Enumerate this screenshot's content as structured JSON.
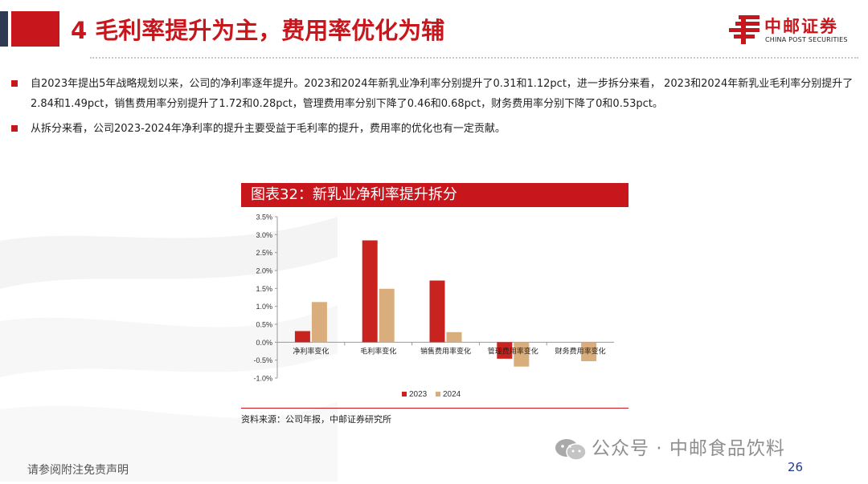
{
  "header": {
    "title": "4 毛利率提升为主，费用率优化为辅",
    "logo_cn": "中邮证券",
    "logo_en": "CHINA POST SECURITIES",
    "accent_color": "#c8161d"
  },
  "bullets": [
    {
      "text": "自2023年提出5年战略规划以来，公司的净利率逐年提升。2023和2024年新乳业净利率分别提升了0.31和1.12pct，进一步拆分来看， 2023和2024年新乳业毛利率分别提升了2.84和1.49pct，销售费用率分别提升了1.72和0.28pct，管理费用率分别下降了0.46和0.68pct，财务费用率分别下降了0和0.53pct。"
    },
    {
      "text": "从拆分来看，公司2023-2024年净利率的提升主要受益于毛利率的提升，费用率的优化也有一定贡献。"
    }
  ],
  "chart_title": "图表32：新乳业净利率提升拆分",
  "chart_data": {
    "type": "bar",
    "categories": [
      "净利率变化",
      "毛利率变化",
      "销售费用率变化",
      "管理费用率变化",
      "财务费用率变化"
    ],
    "series": [
      {
        "name": "2023",
        "values": [
          0.31,
          2.84,
          1.72,
          -0.46,
          0.0
        ],
        "color": "#c8231e"
      },
      {
        "name": "2024",
        "values": [
          1.12,
          1.49,
          0.28,
          -0.68,
          -0.53
        ],
        "color": "#d9ad7c"
      }
    ],
    "yticks": [
      "3.5%",
      "3.0%",
      "2.5%",
      "2.0%",
      "1.5%",
      "1.0%",
      "0.5%",
      "0.0%",
      "-0.5%",
      "-1.0%"
    ],
    "ylim": [
      -1.0,
      3.5
    ],
    "grid": false,
    "legend": "bottom"
  },
  "source": "资料来源：公司年报，中邮证券研究所",
  "footer": {
    "disclaimer": "请参阅附注免责声明",
    "watermark": "公众号 · 中邮食品饮料",
    "page_number": "26"
  }
}
